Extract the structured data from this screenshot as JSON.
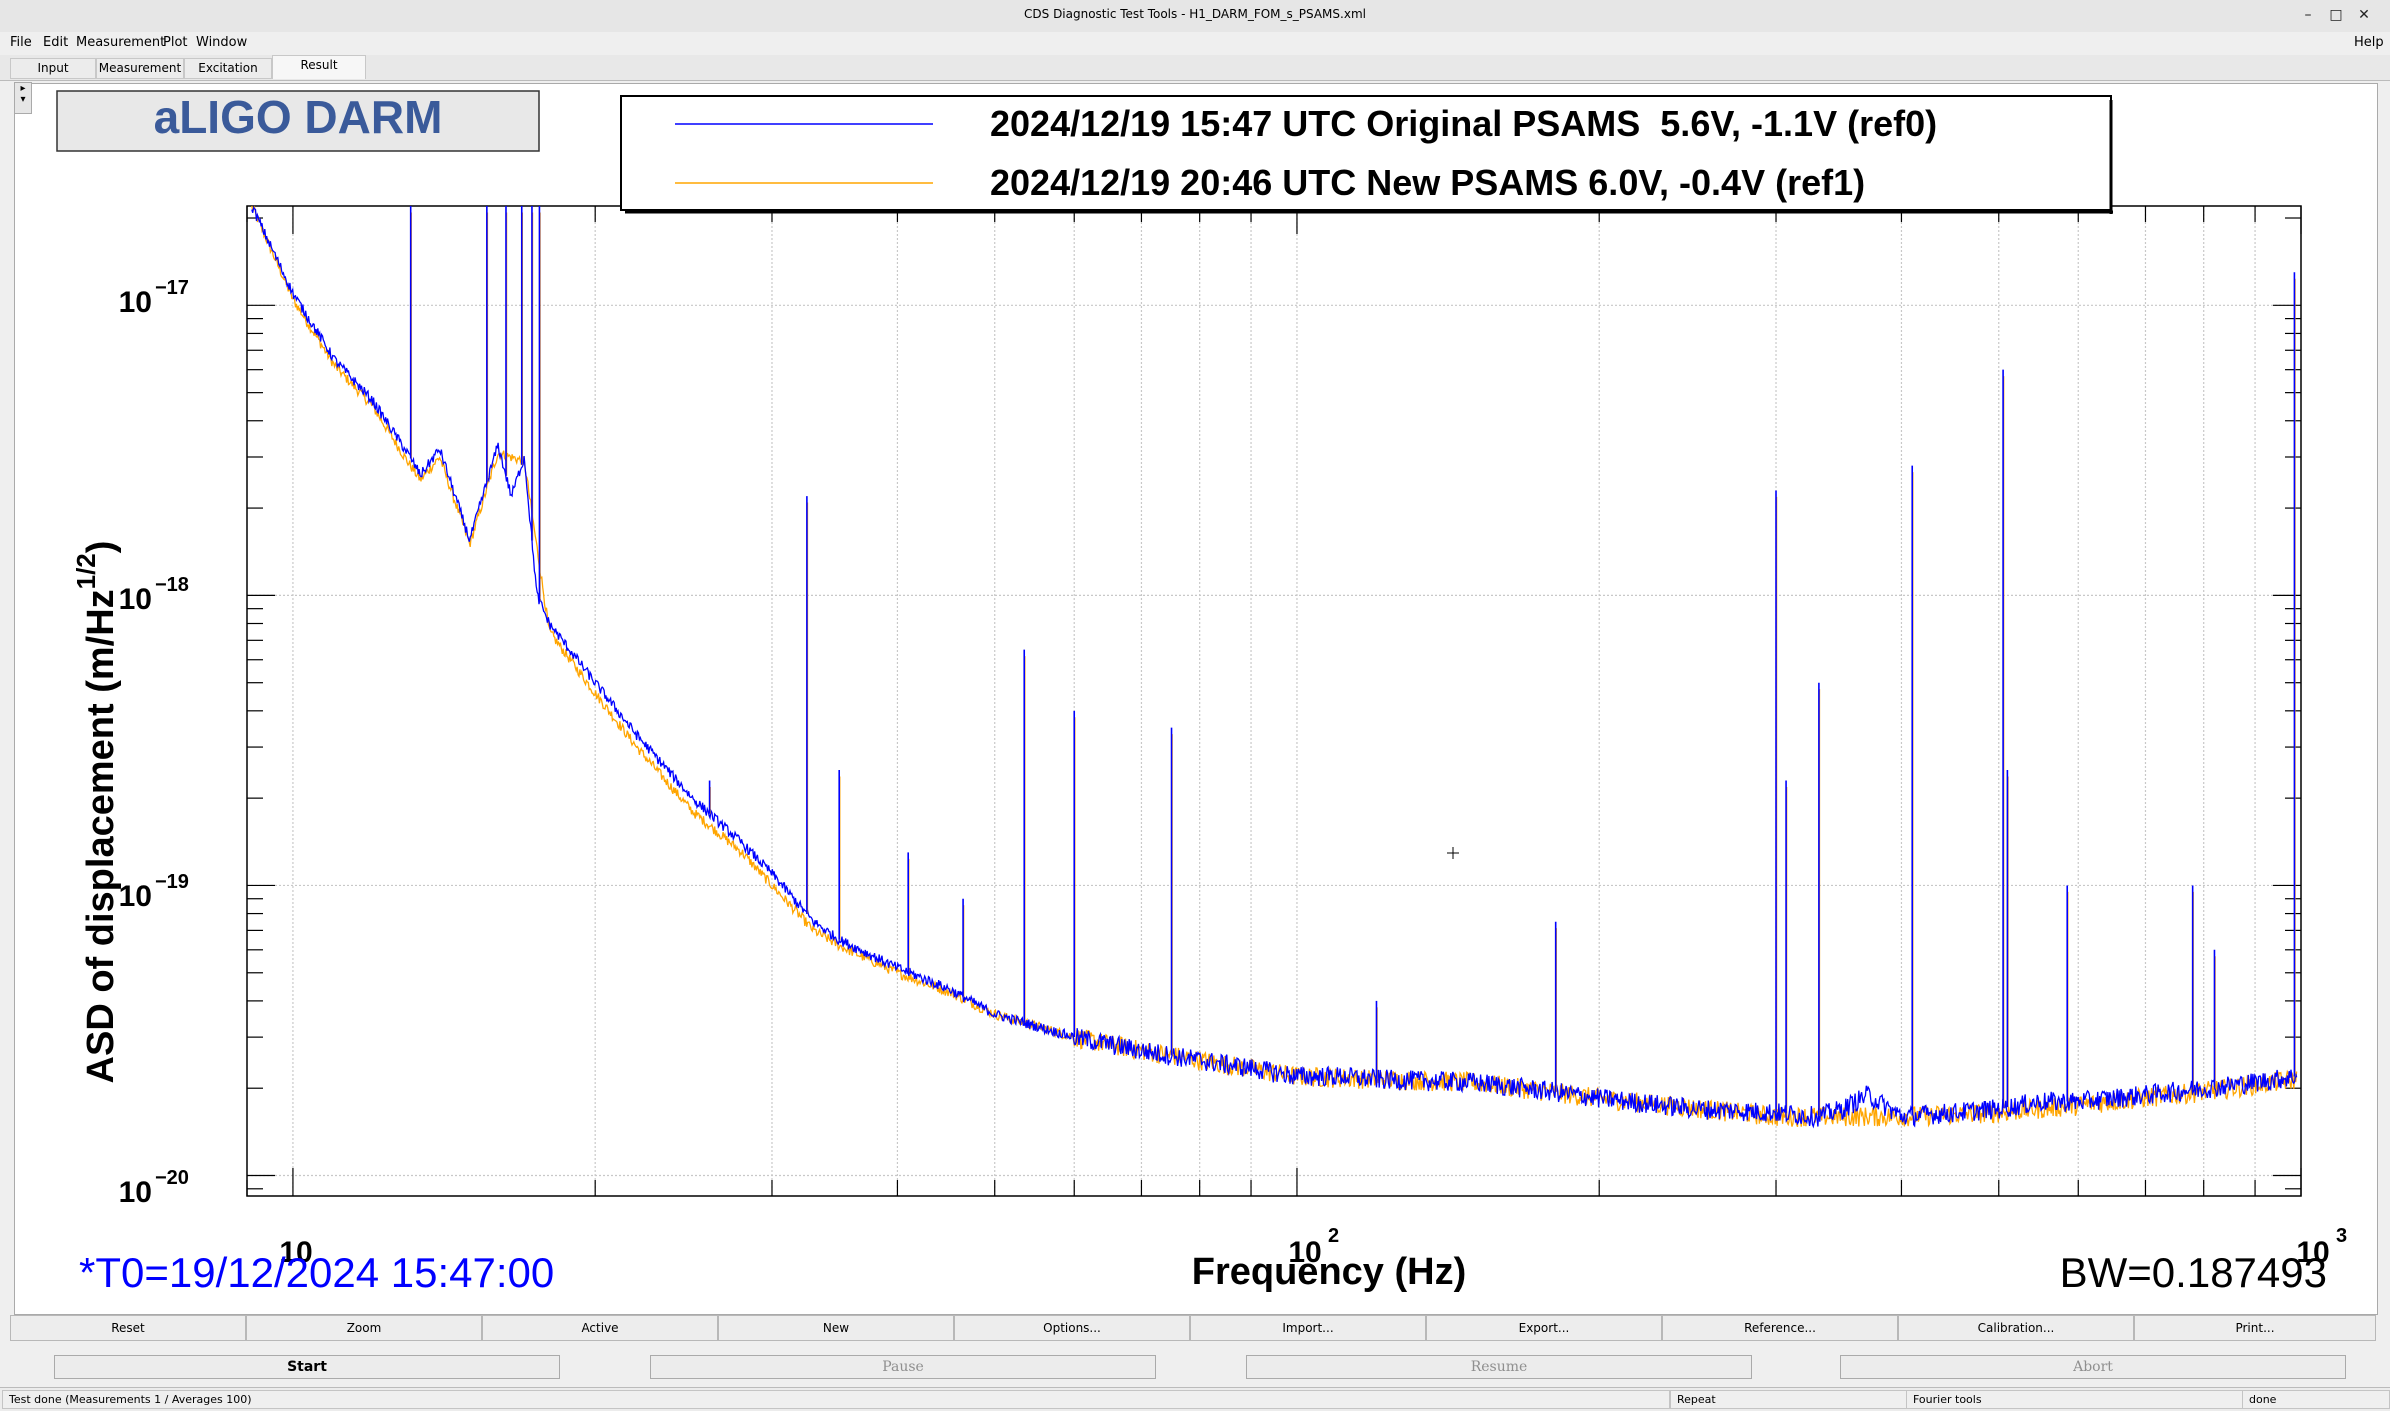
{
  "window": {
    "title": "CDS Diagnostic Test Tools - H1_DARM_FOM_s_PSAMS.xml"
  },
  "menu": {
    "items": [
      "File",
      "Edit",
      "Measurement",
      "Plot",
      "Window"
    ],
    "help": "Help"
  },
  "tabs": [
    {
      "label": "Input",
      "active": false
    },
    {
      "label": "Measurement",
      "active": false
    },
    {
      "label": "Excitation",
      "active": false
    },
    {
      "label": "Result",
      "active": true
    }
  ],
  "plot": {
    "title": "aLIGO DARM",
    "legend": [
      {
        "label": "2024/12/19 15:47 UTC Original PSAMS  5.6V, -1.1V (ref0)",
        "color": "#0000ff"
      },
      {
        "label": "2024/12/19 20:46 UTC New PSAMS 6.0V, -0.4V (ref1)",
        "color": "#ffa500"
      }
    ],
    "t0": "*T0=19/12/2024 15:47:00",
    "bw": "BW=0.187493",
    "ylabel": "ASD of displacement (m/Hz",
    "ylabel_sup": "1/2",
    "ylabel_end": ")",
    "xlabel": "Frequency (Hz)",
    "xticks": [
      {
        "base": "10",
        "exp": ""
      },
      {
        "base": "10",
        "exp": "2"
      },
      {
        "base": "10",
        "exp": "3"
      }
    ],
    "yticks": [
      {
        "base": "10",
        "exp": "−17"
      },
      {
        "base": "10",
        "exp": "−18"
      },
      {
        "base": "10",
        "exp": "−19"
      },
      {
        "base": "10",
        "exp": "−20"
      }
    ],
    "colors": {
      "ref0": "#0000ff",
      "ref1": "#ffa500",
      "title_text": "#3a5a9a",
      "t0_text": "#0000ff"
    }
  },
  "chart_data": {
    "type": "line",
    "title": "aLIGO DARM",
    "xlabel": "Frequency (Hz)",
    "ylabel": "ASD of displacement (m/Hz^1/2)",
    "xscale": "log",
    "yscale": "log",
    "xlim": [
      9,
      1000
    ],
    "ylim": [
      8.5e-21,
      2.2e-17
    ],
    "grid": true,
    "legend_position": "top",
    "series": [
      {
        "name": "2024/12/19 15:47 UTC Original PSAMS  5.6V, -1.1V (ref0)",
        "color": "#0000ff",
        "x": [
          9.1,
          10,
          11,
          12,
          13,
          13.4,
          14,
          15,
          16,
          16.5,
          17,
          17.5,
          18,
          20,
          22,
          25,
          28,
          30,
          33,
          35,
          40,
          45,
          50,
          60,
          70,
          80,
          90,
          100,
          110,
          120,
          150,
          180,
          200,
          250,
          300,
          330,
          350,
          370,
          400,
          450,
          500,
          550,
          600,
          700,
          800,
          900,
          990
        ],
        "y": [
          2.2e-17,
          1.1e-17,
          6.5e-18,
          4.7e-18,
          3.1e-18,
          2.6e-18,
          3.2e-18,
          1.55e-18,
          3.3e-18,
          2.2e-18,
          3e-18,
          1e-18,
          8e-19,
          5e-19,
          3.3e-19,
          2e-19,
          1.4e-19,
          1.1e-19,
          7.5e-20,
          6.5e-20,
          5.2e-20,
          4.4e-20,
          3.6e-20,
          3e-20,
          2.7e-20,
          2.5e-20,
          2.35e-20,
          2.2e-20,
          2.2e-20,
          2.15e-20,
          2.1e-20,
          1.95e-20,
          1.85e-20,
          1.7e-20,
          1.65e-20,
          1.6e-20,
          1.7e-20,
          1.9e-20,
          1.6e-20,
          1.65e-20,
          1.7e-20,
          1.8e-20,
          1.8e-20,
          1.9e-20,
          2e-20,
          2.1e-20,
          2.2e-20
        ]
      },
      {
        "name": "2024/12/19 20:46 UTC New PSAMS 6.0V, -0.4V (ref1)",
        "color": "#ffa500",
        "x": [
          9.1,
          10,
          11,
          12,
          13,
          13.4,
          14,
          15,
          16,
          17,
          18,
          20,
          22,
          25,
          28,
          30,
          33,
          35,
          40,
          45,
          50,
          60,
          70,
          80,
          100,
          150,
          200,
          300,
          400,
          500,
          600,
          800,
          990
        ],
        "y": [
          2.2e-17,
          1.05e-17,
          6.2e-18,
          4.5e-18,
          2.9e-18,
          2.5e-18,
          3e-18,
          1.5e-18,
          3.1e-18,
          2.9e-18,
          7.5e-19,
          4.6e-19,
          3e-19,
          1.8e-19,
          1.3e-19,
          1e-19,
          7e-20,
          6.2e-20,
          5e-20,
          4.3e-20,
          3.6e-20,
          3e-20,
          2.7e-20,
          2.5e-20,
          2.2e-20,
          2.1e-20,
          1.85e-20,
          1.6e-20,
          1.6e-20,
          1.65e-20,
          1.75e-20,
          1.95e-20,
          2.15e-20
        ]
      }
    ],
    "lines": [
      {
        "f": 13.1,
        "amp": 2.2e-17
      },
      {
        "f": 15.6,
        "amp": 2.2e-17
      },
      {
        "f": 16.3,
        "amp": 2.2e-17
      },
      {
        "f": 16.9,
        "amp": 2.2e-17
      },
      {
        "f": 17.3,
        "amp": 2.2e-17
      },
      {
        "f": 17.6,
        "amp": 2.2e-17
      },
      {
        "f": 26.0,
        "amp": 2.3e-19
      },
      {
        "f": 32.5,
        "amp": 2.2e-18
      },
      {
        "f": 35.0,
        "amp": 2.5e-19
      },
      {
        "f": 41.0,
        "amp": 1.3e-19
      },
      {
        "f": 46.5,
        "amp": 9e-20
      },
      {
        "f": 53.5,
        "amp": 6.5e-19
      },
      {
        "f": 60.0,
        "amp": 4e-19
      },
      {
        "f": 75.0,
        "amp": 3.5e-19
      },
      {
        "f": 120.0,
        "amp": 4e-20
      },
      {
        "f": 181.0,
        "amp": 7.5e-20
      },
      {
        "f": 300.0,
        "amp": 2.3e-18
      },
      {
        "f": 307.0,
        "amp": 2.3e-19
      },
      {
        "f": 331.0,
        "amp": 5e-19
      },
      {
        "f": 410.0,
        "amp": 2.8e-18
      },
      {
        "f": 505.0,
        "amp": 6e-18
      },
      {
        "f": 510.0,
        "amp": 2.5e-19
      },
      {
        "f": 585.0,
        "amp": 1e-19
      },
      {
        "f": 780.0,
        "amp": 1e-19
      },
      {
        "f": 820.0,
        "amp": 6e-20
      },
      {
        "f": 985.0,
        "amp": 1.3e-17
      }
    ]
  },
  "toolbar": {
    "buttons": [
      "Reset",
      "Zoom",
      "Active",
      "New",
      "Options...",
      "Import...",
      "Export...",
      "Reference...",
      "Calibration...",
      "Print..."
    ]
  },
  "controls": {
    "start": "Start",
    "pause": "Pause",
    "resume": "Resume",
    "abort": "Abort"
  },
  "status": {
    "message": "Test done (Measurements 1 / Averages 100)",
    "repeat": "Repeat",
    "tool": "Fourier tools",
    "state": "done"
  }
}
